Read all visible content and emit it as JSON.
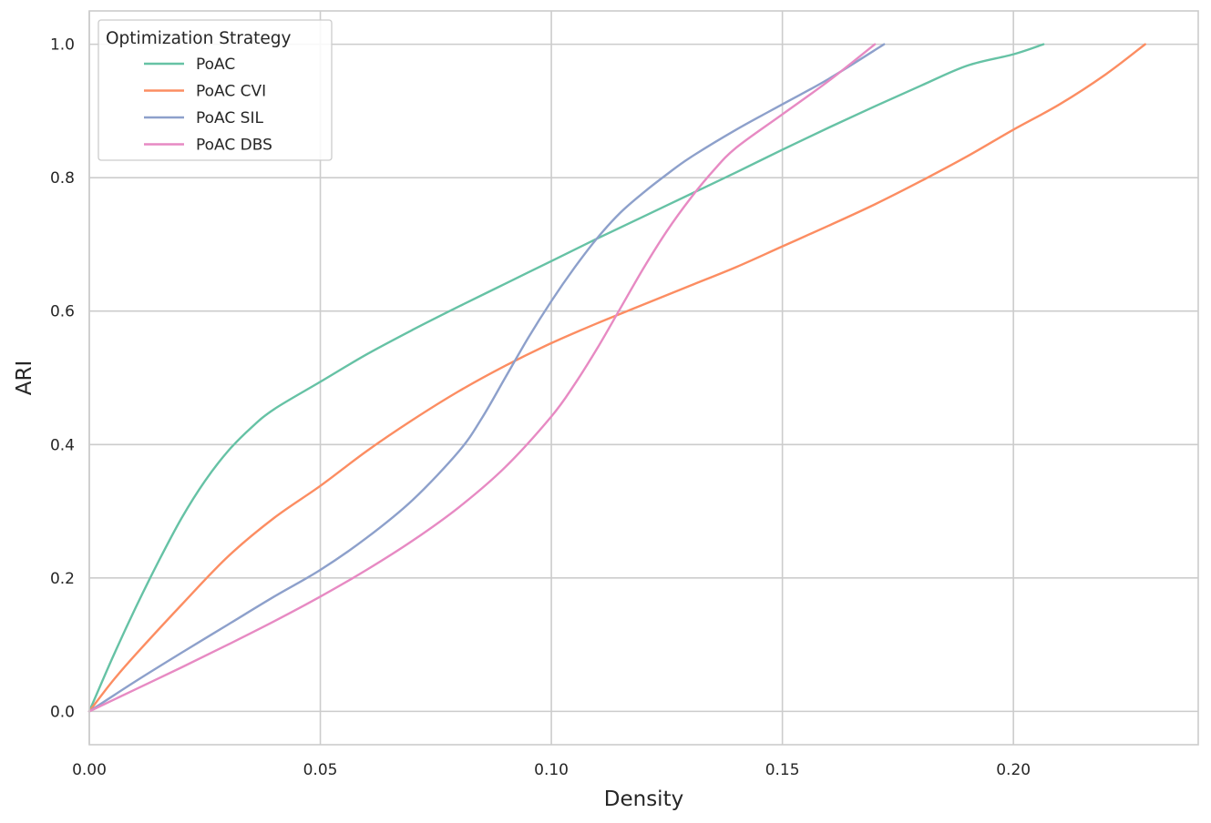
{
  "chart_data": {
    "type": "line",
    "title": "",
    "xlabel": "Density",
    "ylabel": "ARI",
    "xlim": [
      0.0,
      0.24
    ],
    "ylim": [
      -0.05,
      1.05
    ],
    "xticks": [
      0.0,
      0.05,
      0.1,
      0.15,
      0.2
    ],
    "xtick_labels": [
      "0.00",
      "0.05",
      "0.10",
      "0.15",
      "0.20"
    ],
    "yticks": [
      0.0,
      0.2,
      0.4,
      0.6,
      0.8,
      1.0
    ],
    "ytick_labels": [
      "0.0",
      "0.2",
      "0.4",
      "0.6",
      "0.8",
      "1.0"
    ],
    "grid": true,
    "legend": {
      "title": "Optimization Strategy",
      "placement": "top-left"
    },
    "series": [
      {
        "name": "PoAC",
        "color": "#66c2a5",
        "x": [
          0.0,
          0.005,
          0.01,
          0.015,
          0.02,
          0.025,
          0.03,
          0.035,
          0.04,
          0.05,
          0.06,
          0.07,
          0.08,
          0.09,
          0.1,
          0.11,
          0.12,
          0.13,
          0.14,
          0.15,
          0.16,
          0.17,
          0.18,
          0.19,
          0.2,
          0.2065
        ],
        "y": [
          0.0,
          0.08,
          0.155,
          0.225,
          0.29,
          0.345,
          0.39,
          0.425,
          0.453,
          0.494,
          0.535,
          0.572,
          0.607,
          0.641,
          0.675,
          0.709,
          0.742,
          0.775,
          0.808,
          0.842,
          0.875,
          0.907,
          0.938,
          0.968,
          0.985,
          1.0
        ]
      },
      {
        "name": "PoAC CVI",
        "color": "#fc8d62",
        "x": [
          0.0,
          0.005,
          0.01,
          0.02,
          0.03,
          0.04,
          0.05,
          0.06,
          0.07,
          0.08,
          0.09,
          0.1,
          0.11,
          0.12,
          0.13,
          0.14,
          0.15,
          0.16,
          0.17,
          0.18,
          0.19,
          0.2,
          0.21,
          0.22,
          0.2285
        ],
        "y": [
          0.0,
          0.045,
          0.085,
          0.16,
          0.232,
          0.29,
          0.338,
          0.39,
          0.437,
          0.48,
          0.518,
          0.552,
          0.582,
          0.61,
          0.638,
          0.666,
          0.697,
          0.728,
          0.76,
          0.795,
          0.832,
          0.872,
          0.91,
          0.955,
          1.0
        ]
      },
      {
        "name": "PoAC SIL",
        "color": "#8da0cb",
        "x": [
          0.0,
          0.01,
          0.02,
          0.03,
          0.04,
          0.05,
          0.06,
          0.07,
          0.08,
          0.085,
          0.09,
          0.095,
          0.1,
          0.105,
          0.11,
          0.115,
          0.12,
          0.125,
          0.13,
          0.14,
          0.15,
          0.16,
          0.172
        ],
        "y": [
          0.0,
          0.045,
          0.088,
          0.13,
          0.172,
          0.212,
          0.26,
          0.317,
          0.39,
          0.44,
          0.5,
          0.56,
          0.615,
          0.665,
          0.71,
          0.748,
          0.778,
          0.805,
          0.83,
          0.872,
          0.91,
          0.948,
          1.0
        ]
      },
      {
        "name": "PoAC DBS",
        "color": "#e78ac3",
        "x": [
          0.0,
          0.01,
          0.02,
          0.03,
          0.04,
          0.05,
          0.06,
          0.07,
          0.08,
          0.09,
          0.1,
          0.105,
          0.11,
          0.115,
          0.12,
          0.125,
          0.13,
          0.135,
          0.14,
          0.15,
          0.16,
          0.17
        ],
        "y": [
          0.0,
          0.033,
          0.066,
          0.1,
          0.135,
          0.172,
          0.212,
          0.256,
          0.306,
          0.366,
          0.442,
          0.49,
          0.545,
          0.605,
          0.665,
          0.72,
          0.768,
          0.81,
          0.845,
          0.895,
          0.945,
          1.0
        ]
      }
    ]
  }
}
